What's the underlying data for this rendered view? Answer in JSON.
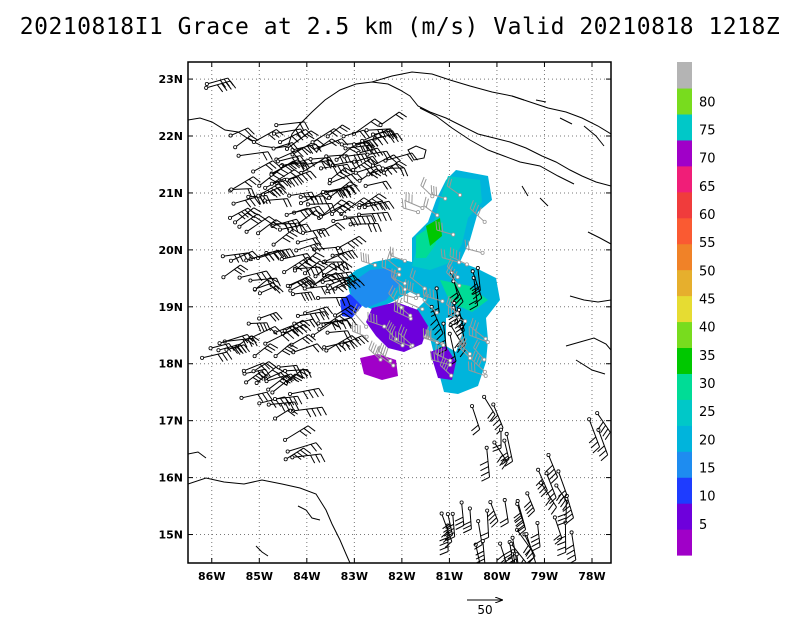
{
  "title": "20210818I1 Grace at 2.5 km (m/s) Valid 20210818 1218Z",
  "map": {
    "lon_range": [
      -86.5,
      -77.6
    ],
    "lat_range": [
      14.5,
      23.3
    ],
    "x_ticks": [
      "86W",
      "85W",
      "84W",
      "83W",
      "82W",
      "81W",
      "80W",
      "79W",
      "78W"
    ],
    "y_ticks": [
      "23N",
      "22N",
      "21N",
      "20N",
      "19N",
      "18N",
      "17N",
      "16N",
      "15N"
    ],
    "grid": "dotted"
  },
  "colorbar": {
    "labels": [
      "5",
      "10",
      "15",
      "20",
      "25",
      "30",
      "35",
      "40",
      "45",
      "50",
      "55",
      "60",
      "65",
      "70",
      "75",
      "80"
    ],
    "colors": [
      "#a000c8",
      "#6e00dc",
      "#1e3cff",
      "#1e8cf0",
      "#00b4dc",
      "#00c8c8",
      "#00dc96",
      "#00c800",
      "#78dc1e",
      "#e6dc32",
      "#e6af2d",
      "#f08228",
      "#fa5a32",
      "#f03c3c",
      "#f01e78",
      "#a000c8",
      "#00c8c8",
      "#78dc1e",
      "#b4b4b4"
    ]
  },
  "reference_vector": {
    "label": "50"
  }
}
